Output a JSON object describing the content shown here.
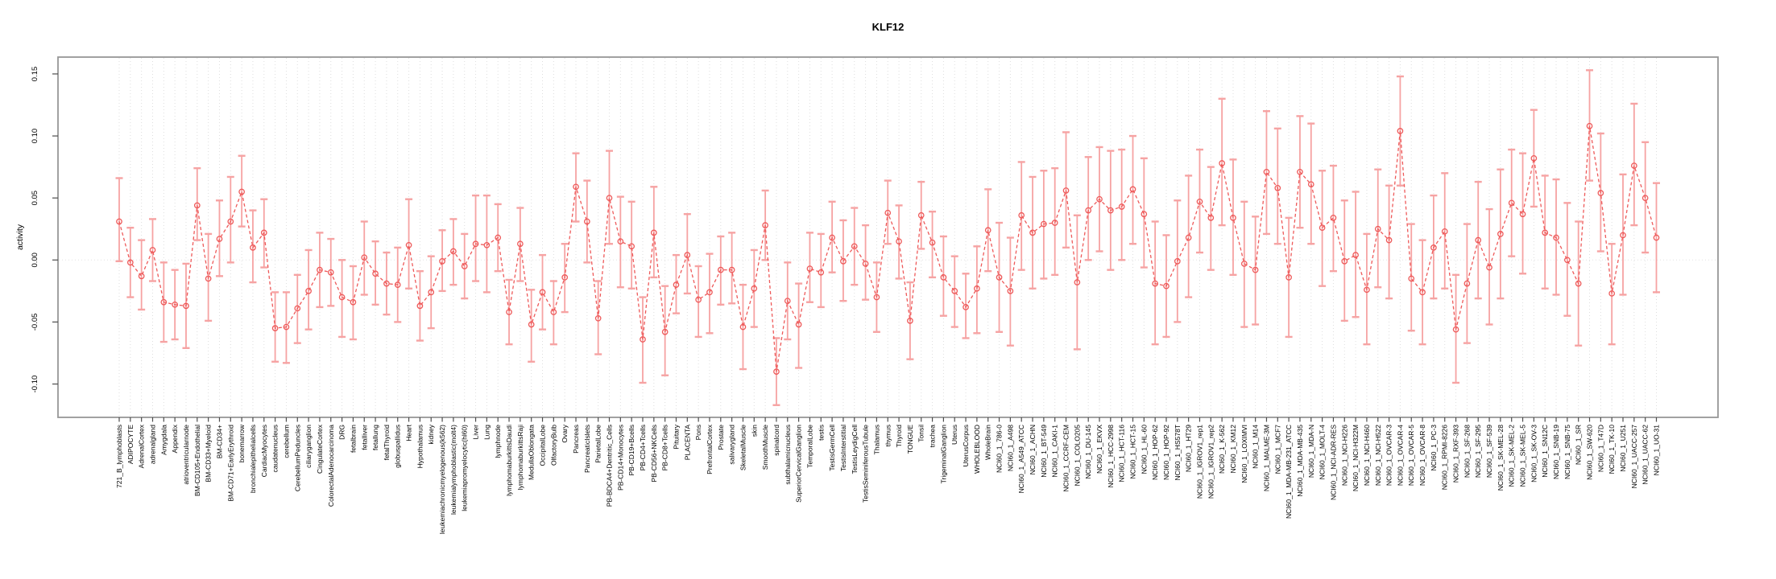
{
  "chart_data": {
    "type": "line",
    "subtype": "points-with-error-bars",
    "title": "KLF12",
    "xlabel": "",
    "ylabel": "activity",
    "legend": "none",
    "grid": "vertical dotted gridline per category, dotted horizontal line at y=0",
    "ylim": [
      -0.127,
      0.162
    ],
    "y_ticks": [
      -0.1,
      -0.05,
      0.0,
      0.05,
      0.1,
      0.15
    ],
    "y_tick_labels": [
      "-0.10",
      "-0.05",
      "0.00",
      "0.05",
      "0.10",
      "0.15"
    ],
    "colors": {
      "point_and_line": "#ee5a5a",
      "error_bar": "#f6a3a3",
      "gridline": "#dedede",
      "zero_line": "#e2e2e2",
      "box": "#979797",
      "tick": "#4d4d4d",
      "text": "#000000",
      "background": "#ffffff"
    },
    "categories": [
      "721_B_lymphoblasts",
      "ADIPOCYTE",
      "AdrenalCortex",
      "adrenalgland",
      "Amygdala",
      "Appendix",
      "atrioventricularnode",
      "BM-CD105+Endothelial",
      "BM-CD33+Myeloid",
      "BM-CD34+",
      "BM-CD71+EarlyErythroid",
      "bonemarrow",
      "bronchialepithelialcells",
      "CardiacMyocytes",
      "caudatenucleus",
      "cerebellum",
      "CerebellumPeduncles",
      "ciliaryganglion",
      "CingulateCortex",
      "ColorectalAdenocarcinoma",
      "DRG",
      "fetalbrain",
      "fetalliver",
      "fetallung",
      "fetalThyroid",
      "globuspallidus",
      "Heart",
      "Hypothalamus",
      "kidney",
      "leukemiachronicmyelogenous(k562)",
      "leukemialymphoblastic(molt4)",
      "leukemiapromyelocytic(hl60)",
      "Liver",
      "Lung",
      "lymphnode",
      "lymphomaburkittsDaudi",
      "lymphomaburkittsRaji",
      "MedullaOblongata",
      "OccipitalLobe",
      "OlfactoryBulb",
      "Ovary",
      "Pancreas",
      "PancreaticIslets",
      "ParietalLobe",
      "PB-BDCA4+Dentritic_Cells",
      "PB-CD14+Monocytes",
      "PB-CD19+Bcells",
      "PB-CD4+Tcells",
      "PB-CD56+NKCells",
      "PB-CD8+Tcells",
      "Pituitary",
      "PLACENTA",
      "Pons",
      "PrefrontalCortex",
      "Prostate",
      "salivarygland",
      "SkeletalMuscle",
      "skin",
      "SmoothMuscle",
      "spinalcord",
      "subthalamicnucleus",
      "SuperiorCervicalGanglion",
      "TemporalLobe",
      "testis",
      "TestisGermCell",
      "TestisInterstitial",
      "TestisLeydigCell",
      "TestisSeminiferousTubule",
      "Thalamus",
      "thymus",
      "Thyroid",
      "TONGUE",
      "Tonsil",
      "trachea",
      "TrigeminalGanglion",
      "Uterus",
      "UterusCorpus",
      "WHOLEBLOOD",
      "WholeBrain",
      "NCI60_1_786-0",
      "NCI60_1_A498",
      "NCI60_1_A549_ATCC",
      "NCI60_1_ACHN",
      "NCI60_1_BT-549",
      "NCI60_1_CAKI-1",
      "NCI60_1_CCRF-CEM",
      "NCI60_1_COLO205",
      "NCI60_1_DU-145",
      "NCI60_1_EKVX",
      "NCI60_1_HCC-2998",
      "NCI60_1_HCT-116",
      "NCI60_1_HCT-15",
      "NCI60_1_HL-60",
      "NCI60_1_HOP-62",
      "NCI60_1_HOP-92",
      "NCI60_1_HS578T",
      "NCI60_1_HT29",
      "NCI60_1_IGROV1_rep1",
      "NCI60_1_IGROV1_rep2",
      "NCI60_1_K-562",
      "NCI60_1_KM12",
      "NCI60_1_LOXIMVI",
      "NCI60_1_M14",
      "NCI60_1_MALME-3M",
      "NCI60_1_MCF7",
      "NCI60_1_MDA-MB-231_ATCC",
      "NCI60_1_MDA-MB-435",
      "NCI60_1_MDA-N",
      "NCI60_1_MOLT-4",
      "NCI60_1_NCI-ADR-RES",
      "NCI60_1_NCI-H226",
      "NCI60_1_NCI-H322M",
      "NCI60_1_NCI-H460",
      "NCI60_1_NCI-H522",
      "NCI60_1_OVCAR-3",
      "NCI60_1_OVCAR-4",
      "NCI60_1_OVCAR-5",
      "NCI60_1_OVCAR-8",
      "NCI60_1_PC-3",
      "NCI60_1_RPMI-8226",
      "NCI60_1_RXF-393",
      "NCI60_1_SF-268",
      "NCI60_1_SF-295",
      "NCI60_1_SF-539",
      "NCI60_1_SK-MEL-28",
      "NCI60_1_SK-MEL-2",
      "NCI60_1_SK-MEL-5",
      "NCI60_1_SK-OV-3",
      "NCI60_1_SN12C",
      "NCI60_1_SNB-19",
      "NCI60_1_SNB-75",
      "NCI60_1_SR",
      "NCI60_1_SW-620",
      "NCI60_1_T47D",
      "NCI60_1_TK-10",
      "NCI60_1_U251",
      "NCI60_1_UACC-257",
      "NCI60_1_UACC-62",
      "NCI60_1_UO-31"
    ],
    "values": [
      0.031,
      -0.002,
      -0.013,
      0.008,
      -0.034,
      -0.036,
      -0.037,
      0.044,
      -0.015,
      0.017,
      0.031,
      0.055,
      0.01,
      0.022,
      -0.055,
      -0.054,
      -0.039,
      -0.025,
      -0.008,
      -0.01,
      -0.03,
      -0.034,
      0.002,
      -0.011,
      -0.019,
      -0.02,
      0.012,
      -0.037,
      -0.026,
      -0.001,
      0.007,
      -0.005,
      0.013,
      0.012,
      0.018,
      -0.042,
      0.013,
      -0.052,
      -0.026,
      -0.042,
      -0.014,
      0.059,
      0.031,
      -0.047,
      0.05,
      0.015,
      0.011,
      -0.064,
      0.022,
      -0.058,
      -0.02,
      0.004,
      -0.032,
      -0.026,
      -0.008,
      -0.008,
      -0.054,
      -0.023,
      0.028,
      -0.09,
      -0.033,
      -0.052,
      -0.007,
      -0.01,
      0.018,
      -0.001,
      0.011,
      -0.003,
      -0.03,
      0.038,
      0.015,
      -0.049,
      0.036,
      0.014,
      -0.014,
      -0.025,
      -0.038,
      -0.023,
      0.024,
      -0.014,
      -0.025,
      0.036,
      0.022,
      0.029,
      0.03,
      0.056,
      -0.018,
      0.04,
      0.049,
      0.04,
      0.043,
      0.057,
      0.037,
      -0.019,
      -0.021,
      -0.001,
      0.018,
      0.047,
      0.034,
      0.078,
      0.034,
      -0.003,
      -0.008,
      0.071,
      0.058,
      -0.014,
      0.071,
      0.061,
      0.026,
      0.034,
      -0.001,
      0.004,
      -0.024,
      0.025,
      0.016,
      0.104,
      -0.015,
      -0.026,
      0.01,
      0.023,
      -0.056,
      -0.019,
      0.016,
      -0.006,
      0.021,
      0.046,
      0.037,
      0.082,
      0.022,
      0.018,
      0.0,
      -0.019,
      0.108,
      0.054,
      -0.027,
      0.02,
      0.076,
      0.05,
      0.018
    ],
    "err_lo": [
      -0.001,
      -0.03,
      -0.04,
      -0.017,
      -0.066,
      -0.064,
      -0.071,
      0.016,
      -0.049,
      -0.013,
      -0.002,
      0.027,
      -0.018,
      -0.006,
      -0.082,
      -0.083,
      -0.067,
      -0.056,
      -0.038,
      -0.037,
      -0.062,
      -0.064,
      -0.028,
      -0.036,
      -0.044,
      -0.05,
      -0.023,
      -0.065,
      -0.055,
      -0.025,
      -0.02,
      -0.031,
      -0.017,
      -0.026,
      -0.009,
      -0.068,
      -0.017,
      -0.082,
      -0.056,
      -0.068,
      -0.042,
      0.031,
      -0.002,
      -0.076,
      0.013,
      -0.022,
      -0.023,
      -0.099,
      -0.014,
      -0.093,
      -0.043,
      -0.027,
      -0.062,
      -0.059,
      -0.036,
      -0.035,
      -0.088,
      -0.054,
      0.0,
      -0.117,
      -0.064,
      -0.087,
      -0.034,
      -0.038,
      -0.01,
      -0.033,
      -0.02,
      -0.032,
      -0.058,
      0.013,
      -0.015,
      -0.08,
      0.009,
      -0.014,
      -0.045,
      -0.054,
      -0.063,
      -0.059,
      -0.009,
      -0.058,
      -0.069,
      -0.008,
      -0.023,
      -0.015,
      -0.012,
      0.01,
      -0.072,
      0.0,
      0.007,
      -0.008,
      0.0,
      0.013,
      -0.006,
      -0.068,
      -0.062,
      -0.05,
      -0.03,
      0.006,
      -0.008,
      0.028,
      -0.012,
      -0.054,
      -0.052,
      0.021,
      0.013,
      -0.062,
      0.026,
      0.013,
      -0.021,
      -0.009,
      -0.049,
      -0.046,
      -0.068,
      -0.022,
      -0.031,
      0.06,
      -0.057,
      -0.068,
      -0.031,
      -0.023,
      -0.099,
      -0.067,
      -0.031,
      -0.052,
      -0.031,
      0.003,
      -0.011,
      0.043,
      -0.023,
      -0.028,
      -0.045,
      -0.069,
      0.064,
      0.007,
      -0.068,
      -0.028,
      0.028,
      0.006,
      -0.026
    ],
    "err_hi": [
      0.066,
      0.026,
      0.016,
      0.033,
      -0.002,
      -0.008,
      -0.003,
      0.074,
      0.021,
      0.048,
      0.067,
      0.084,
      0.04,
      0.049,
      -0.026,
      -0.026,
      -0.012,
      0.008,
      0.022,
      0.017,
      0.0,
      -0.005,
      0.031,
      0.015,
      0.006,
      0.01,
      0.049,
      -0.009,
      0.003,
      0.024,
      0.033,
      0.021,
      0.052,
      0.052,
      0.045,
      -0.016,
      0.042,
      -0.024,
      0.004,
      -0.017,
      0.013,
      0.086,
      0.064,
      -0.017,
      0.088,
      0.051,
      0.047,
      -0.03,
      0.059,
      -0.021,
      0.004,
      0.037,
      -0.005,
      0.005,
      0.019,
      0.022,
      -0.02,
      0.008,
      0.056,
      -0.063,
      -0.002,
      -0.019,
      0.022,
      0.021,
      0.047,
      0.032,
      0.042,
      0.028,
      -0.002,
      0.064,
      0.044,
      -0.018,
      0.063,
      0.039,
      0.019,
      0.003,
      -0.011,
      0.011,
      0.057,
      0.03,
      0.018,
      0.079,
      0.067,
      0.072,
      0.074,
      0.103,
      0.036,
      0.083,
      0.091,
      0.088,
      0.089,
      0.1,
      0.082,
      0.031,
      0.02,
      0.048,
      0.068,
      0.089,
      0.075,
      0.13,
      0.081,
      0.047,
      0.035,
      0.12,
      0.106,
      0.034,
      0.116,
      0.11,
      0.072,
      0.076,
      0.048,
      0.055,
      0.021,
      0.073,
      0.06,
      0.148,
      0.029,
      0.016,
      0.052,
      0.07,
      -0.012,
      0.029,
      0.063,
      0.041,
      0.073,
      0.089,
      0.086,
      0.121,
      0.068,
      0.065,
      0.046,
      0.031,
      0.153,
      0.102,
      0.013,
      0.069,
      0.126,
      0.095,
      0.062
    ]
  }
}
